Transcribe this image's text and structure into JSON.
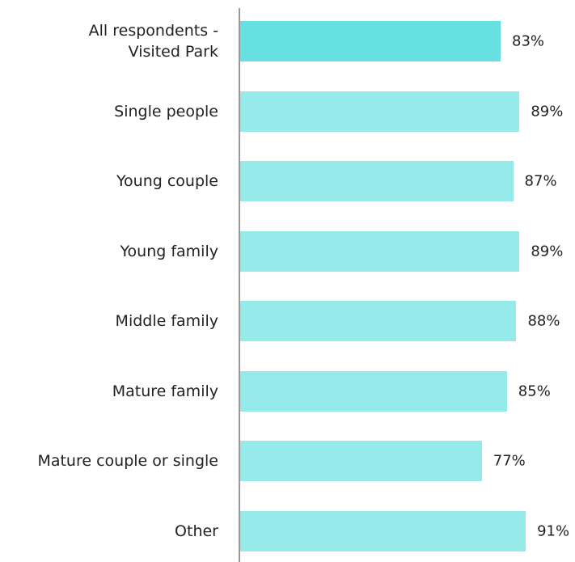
{
  "chart_data": {
    "type": "bar",
    "orientation": "horizontal",
    "categories": [
      "All respondents -\nVisited Park",
      "Single people",
      "Young couple",
      "Young family",
      "Middle family",
      "Mature family",
      "Mature couple or single",
      "Other"
    ],
    "values": [
      83,
      89,
      87,
      89,
      88,
      85,
      77,
      91
    ],
    "value_labels": [
      "83%",
      "89%",
      "87%",
      "89%",
      "88%",
      "85%",
      "77%",
      "91%"
    ],
    "colors": [
      "#66e0e0",
      "#96eaea",
      "#96eaea",
      "#96eaea",
      "#96eaea",
      "#96eaea",
      "#96eaea",
      "#96eaea"
    ]
  }
}
